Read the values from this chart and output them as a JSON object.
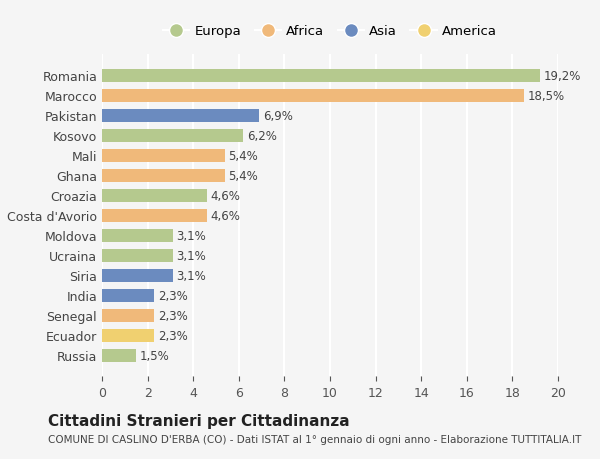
{
  "countries": [
    "Romania",
    "Marocco",
    "Pakistan",
    "Kosovo",
    "Mali",
    "Ghana",
    "Croazia",
    "Costa d'Avorio",
    "Moldova",
    "Ucraina",
    "Siria",
    "India",
    "Senegal",
    "Ecuador",
    "Russia"
  ],
  "values": [
    19.2,
    18.5,
    6.9,
    6.2,
    5.4,
    5.4,
    4.6,
    4.6,
    3.1,
    3.1,
    3.1,
    2.3,
    2.3,
    2.3,
    1.5
  ],
  "labels": [
    "19,2%",
    "18,5%",
    "6,9%",
    "6,2%",
    "5,4%",
    "5,4%",
    "4,6%",
    "4,6%",
    "3,1%",
    "3,1%",
    "3,1%",
    "2,3%",
    "2,3%",
    "2,3%",
    "1,5%"
  ],
  "continents": [
    "Europa",
    "Africa",
    "Asia",
    "Europa",
    "Africa",
    "Africa",
    "Europa",
    "Africa",
    "Europa",
    "Europa",
    "Asia",
    "Asia",
    "Africa",
    "America",
    "Europa"
  ],
  "colors": {
    "Europa": "#b5c98e",
    "Africa": "#f0b97a",
    "Asia": "#6b8bbf",
    "America": "#f0d070"
  },
  "legend_order": [
    "Europa",
    "Africa",
    "Asia",
    "America"
  ],
  "title": "Cittadini Stranieri per Cittadinanza",
  "subtitle": "COMUNE DI CASLINO D'ERBA (CO) - Dati ISTAT al 1° gennaio di ogni anno - Elaborazione TUTTITALIA.IT",
  "xlim": [
    0,
    20
  ],
  "xticks": [
    0,
    2,
    4,
    6,
    8,
    10,
    12,
    14,
    16,
    18,
    20
  ],
  "background_color": "#f5f5f5",
  "grid_color": "#ffffff"
}
